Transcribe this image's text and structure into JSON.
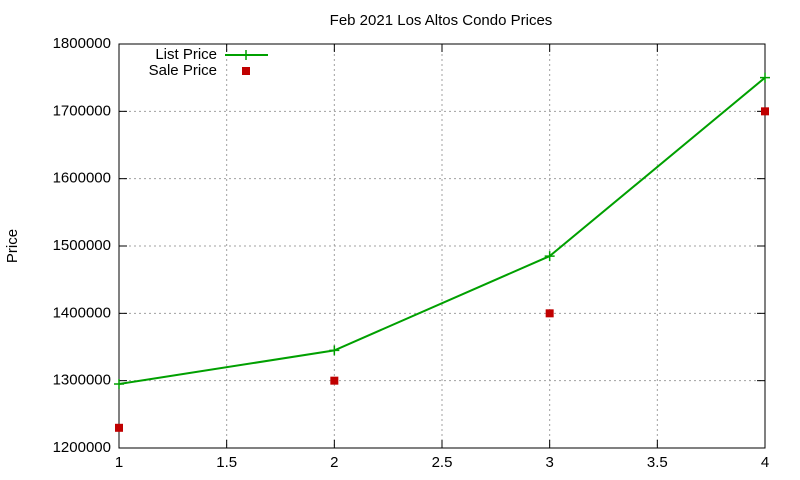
{
  "chart_data": {
    "type": "line",
    "title": "Feb 2021 Los Altos Condo Prices",
    "y_label": "Price",
    "x": [
      1,
      2,
      3,
      4
    ],
    "series": [
      {
        "name": "List Price",
        "color": "#00a000",
        "style": "linespoints",
        "values": [
          1295000,
          1345000,
          1485000,
          1750000
        ]
      },
      {
        "name": "Sale Price",
        "color": "#c00000",
        "style": "points",
        "values": [
          1230000,
          1300000,
          1400000,
          1700000
        ]
      }
    ],
    "xlim": [
      1,
      4
    ],
    "xticks": [
      1,
      1.5,
      2,
      2.5,
      3,
      3.5,
      4
    ],
    "ylim": [
      1200000,
      1800000
    ],
    "yticks": [
      1200000,
      1300000,
      1400000,
      1500000,
      1600000,
      1700000,
      1800000
    ],
    "grid": true,
    "legend": "top-left"
  }
}
